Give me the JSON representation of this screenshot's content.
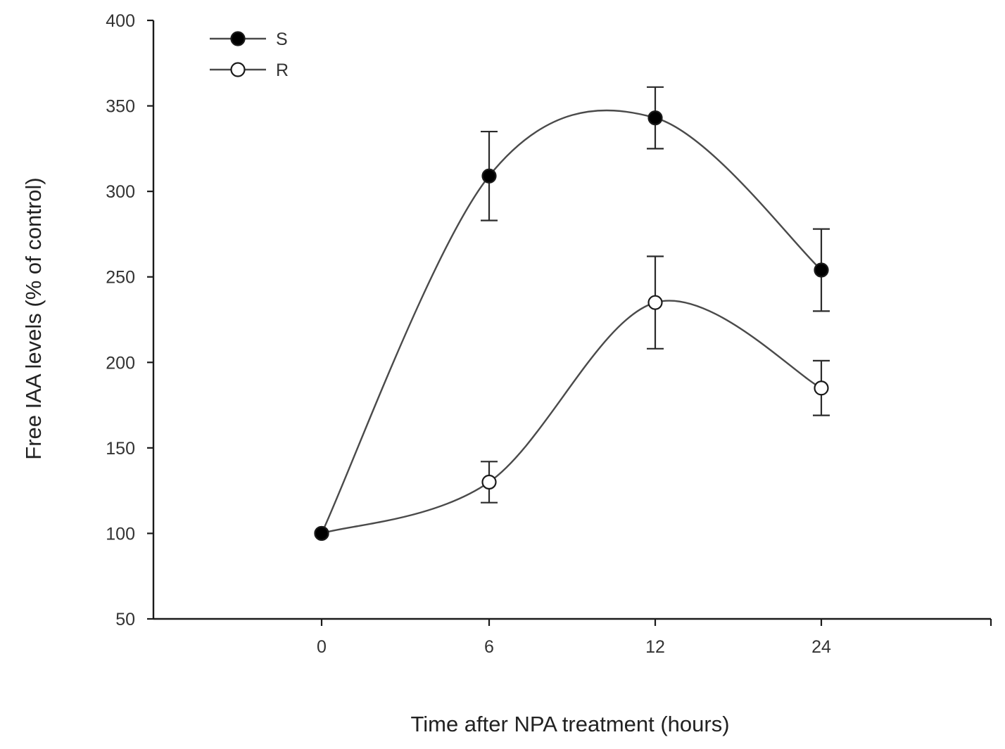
{
  "chart_data": {
    "type": "line",
    "title": "",
    "xlabel": "Time after NPA treatment (hours)",
    "ylabel": "Free IAA levels (% of control)",
    "categories": [
      "0",
      "6",
      "12",
      "24"
    ],
    "ylim": [
      50,
      400
    ],
    "yticks": [
      50,
      100,
      150,
      200,
      250,
      300,
      350,
      400
    ],
    "legend_position": "top-left",
    "grid": false,
    "series": [
      {
        "name": "S",
        "marker": "filled-circle",
        "color": "#000000",
        "values": [
          100,
          309,
          343,
          254
        ],
        "errors": [
          0,
          26,
          18,
          24
        ]
      },
      {
        "name": "R",
        "marker": "open-circle",
        "color": "#000000",
        "values": [
          100,
          130,
          235,
          185
        ],
        "errors": [
          0,
          12,
          27,
          16
        ]
      }
    ]
  }
}
